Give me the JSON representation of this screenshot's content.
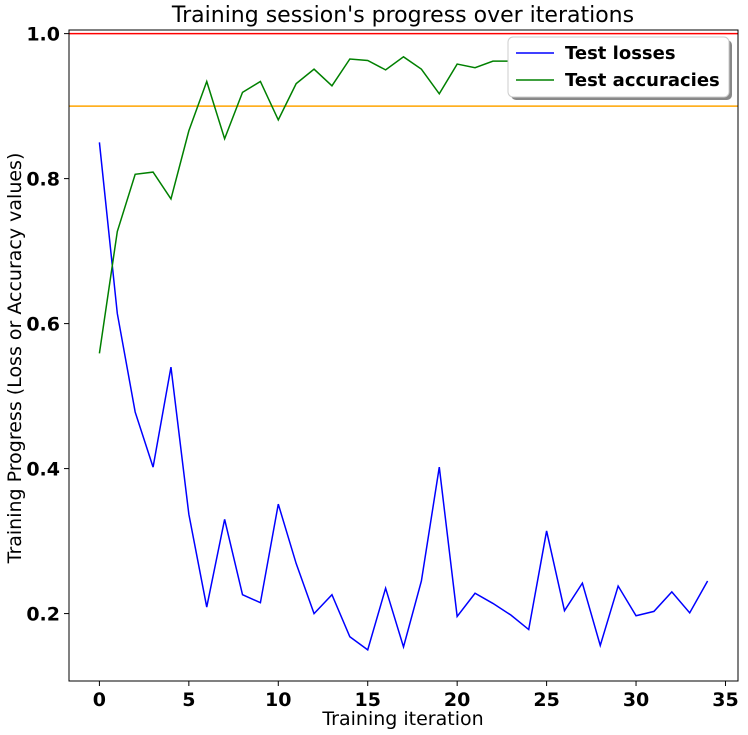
{
  "chart_data": {
    "type": "line",
    "title": "Training session's progress over iterations",
    "xlabel": "Training iteration",
    "ylabel": "Training Progress (Loss or Accuracy values)",
    "xlim": [
      -1.7,
      35.7
    ],
    "ylim": [
      0.107,
      1.005
    ],
    "xticks": [
      0,
      5,
      10,
      15,
      20,
      25,
      30,
      35
    ],
    "yticks": [
      0.2,
      0.4,
      0.6,
      0.8,
      1.0
    ],
    "ytick_labels": [
      "0.2",
      "0.4",
      "0.6",
      "0.8",
      "1.0"
    ],
    "grid": false,
    "legend_position": "top-right",
    "x": [
      0,
      1,
      2,
      3,
      4,
      5,
      6,
      7,
      8,
      9,
      10,
      11,
      12,
      13,
      14,
      15,
      16,
      17,
      18,
      19,
      20,
      21,
      22,
      23,
      24,
      25,
      26,
      27,
      28,
      29,
      30,
      31,
      32,
      33,
      34
    ],
    "series": [
      {
        "name": "Test losses",
        "color": "#0000ff",
        "values": [
          0.85,
          0.614,
          0.478,
          0.402,
          0.54,
          0.337,
          0.209,
          0.33,
          0.226,
          0.215,
          0.351,
          0.269,
          0.2,
          0.226,
          0.168,
          0.15,
          0.235,
          0.154,
          0.245,
          0.402,
          0.196,
          0.228,
          0.214,
          0.198,
          0.178,
          0.314,
          0.204,
          0.242,
          0.156,
          0.238,
          0.197,
          0.203,
          0.23,
          0.201,
          0.245
        ]
      },
      {
        "name": "Test accuracies",
        "color": "#008000",
        "values": [
          0.559,
          0.727,
          0.806,
          0.809,
          0.772,
          0.866,
          0.934,
          0.855,
          0.919,
          0.934,
          0.881,
          0.931,
          0.951,
          0.928,
          0.965,
          0.963,
          0.95,
          0.968,
          0.951,
          0.917,
          0.958,
          0.953,
          0.962,
          0.962,
          0.965,
          0.96,
          0.97,
          0.965,
          0.968,
          0.972,
          0.966,
          0.97,
          0.969,
          0.972,
          0.974
        ]
      }
    ],
    "hlines": [
      {
        "y": 1.0,
        "color": "#ff0000"
      },
      {
        "y": 0.9,
        "color": "#ffa500"
      }
    ]
  }
}
